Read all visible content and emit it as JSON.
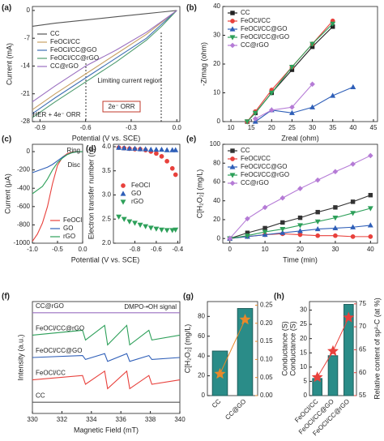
{
  "chart_data": [
    {
      "type": "line",
      "panel_label": "(a)",
      "xlabel": "Potential (V vs. SCE)",
      "ylabel": "Current (mA)",
      "x": [
        -0.95,
        -0.8,
        -0.6,
        -0.4,
        -0.2,
        -0.1,
        0
      ],
      "xlim": [
        -0.95,
        0.02
      ],
      "xticks": [
        -0.9,
        -0.6,
        -0.3,
        {
          "value": 0,
          "label": "0.0"
        }
      ],
      "ylim": [
        -28,
        1
      ],
      "yticks": [
        0,
        -7,
        -14,
        -21,
        -28
      ],
      "legend": "upper left",
      "series": [
        {
          "name": "CC",
          "color": "#555555",
          "values": [
            -4,
            -3.2,
            -2.4,
            -1.6,
            -0.8,
            -0.4,
            0
          ]
        },
        {
          "name": "FeOCl/CC",
          "color": "#c8a165",
          "values": [
            -25,
            -21,
            -16,
            -11,
            -6,
            -3,
            0
          ]
        },
        {
          "name": "FeOCl/CC@GO",
          "color": "#3f6fb5",
          "values": [
            -26,
            -22,
            -17,
            -12,
            -7,
            -3.5,
            0
          ]
        },
        {
          "name": "FeOCl/CC@rGO",
          "color": "#4e9c6e",
          "values": [
            -27,
            -23,
            -18,
            -13,
            -7.5,
            -4,
            0
          ]
        },
        {
          "name": "CC@rGO",
          "color": "#9a6fc0",
          "values": [
            -23,
            -19,
            -14,
            -10,
            -5.5,
            -2.8,
            0
          ]
        }
      ],
      "annotations": [
        "Limiting current region",
        "2e⁻ ORR",
        "HER + 4e⁻ ORR"
      ]
    },
    {
      "type": "line",
      "panel_label": "(b)",
      "xlabel": "Zreal (ohm)",
      "ylabel": "-Zimag (ohm)",
      "markers": true,
      "x": [
        14,
        16,
        20,
        25,
        30,
        35,
        40
      ],
      "xlim": [
        8,
        46
      ],
      "xticks": [
        10,
        15,
        20,
        25,
        30,
        35,
        40,
        45
      ],
      "ylim": [
        0,
        40
      ],
      "yticks": [
        0,
        10,
        20,
        30,
        40
      ],
      "legend": "upper left",
      "series": [
        {
          "name": "CC",
          "color": "#222222",
          "marker": "square",
          "values": [
            0,
            3,
            10,
            18,
            26,
            33,
            null
          ]
        },
        {
          "name": "FeOCl/CC",
          "color": "#e8413c",
          "marker": "circle",
          "values": [
            0,
            3.5,
            11,
            19,
            27,
            35,
            null
          ]
        },
        {
          "name": "FeOCl/CC@GO",
          "color": "#2f5fb8",
          "marker": "triangle",
          "values": [
            null,
            0,
            4,
            3,
            5,
            9,
            12
          ]
        },
        {
          "name": "FeOCl/CC@rGO",
          "color": "#2ea05a",
          "marker": "triangle-down",
          "values": [
            0,
            3,
            10,
            19,
            27,
            34,
            null
          ]
        },
        {
          "name": "CC@rGO",
          "color": "#b57bd6",
          "marker": "diamond",
          "values": [
            null,
            1,
            4,
            5,
            13,
            null,
            null
          ]
        }
      ]
    },
    {
      "type": "line",
      "panel_label": "(c)",
      "xlabel": "Potential (V vs. SCE)",
      "ylabel": "Current (μA)",
      "x": [
        -1.0,
        -0.9,
        -0.8,
        -0.7,
        -0.6,
        -0.5,
        -0.4,
        -0.3,
        -0.2,
        -0.1,
        0
      ],
      "xlim": [
        -1.0,
        0.0
      ],
      "xticks": [
        {
          "value": -1,
          "label": "-1.0"
        },
        -0.5,
        {
          "value": 0,
          "label": "0.0"
        }
      ],
      "ylim": [
        -1000,
        80
      ],
      "yticks": [
        0,
        -200,
        -400,
        -600,
        -800,
        -1000
      ],
      "legend": "lower right",
      "series": [
        {
          "name": "FeOCl",
          "color": "#e8413c",
          "values": [
            -980,
            -900,
            -780,
            -600,
            -350,
            -150,
            -60,
            -20,
            -5,
            0,
            0
          ]
        },
        {
          "name": "GO",
          "color": "#2f5fb8",
          "values": [
            -230,
            -210,
            -190,
            -170,
            -140,
            -100,
            -60,
            -30,
            -10,
            0,
            0
          ]
        },
        {
          "name": "rGO",
          "color": "#2ea05a",
          "values": [
            -460,
            -420,
            -380,
            -300,
            -200,
            -120,
            -70,
            -30,
            -10,
            0,
            0
          ]
        }
      ],
      "annotations": [
        "Ring",
        "Disc"
      ]
    },
    {
      "type": "scatter",
      "panel_label": "(d)",
      "ylabel": "Electron transfer number (n)",
      "x": [
        -0.95,
        -0.9,
        -0.85,
        -0.8,
        -0.75,
        -0.7,
        -0.65,
        -0.6,
        -0.55,
        -0.5,
        -0.45,
        -0.42
      ],
      "xlim": [
        -1.0,
        -0.38
      ],
      "xticks": [
        -0.8,
        -0.6,
        -0.4
      ],
      "ylim": [
        2.0,
        4.05
      ],
      "yticks": [
        {
          "value": 2,
          "label": "2.0"
        },
        2.5,
        {
          "value": 3,
          "label": "3.0"
        },
        3.5,
        {
          "value": 4,
          "label": "4.0"
        }
      ],
      "legend": "center left",
      "series": [
        {
          "name": "FeOCl",
          "color": "#e8413c",
          "marker": "circle",
          "values": [
            3.98,
            3.97,
            3.96,
            3.95,
            3.95,
            3.93,
            3.9,
            3.86,
            3.8,
            3.7,
            3.55,
            3.42
          ]
        },
        {
          "name": "GO",
          "color": "#2f5fb8",
          "marker": "triangle",
          "values": [
            3.98,
            3.97,
            3.96,
            3.96,
            3.95,
            3.95,
            3.94,
            3.94,
            3.94,
            3.93,
            3.93,
            3.93
          ]
        },
        {
          "name": "rGO",
          "color": "#2ea05a",
          "marker": "triangle-down",
          "values": [
            2.55,
            2.5,
            2.45,
            2.42,
            2.38,
            2.35,
            2.32,
            2.3,
            2.28,
            2.27,
            2.27,
            2.28
          ]
        }
      ]
    },
    {
      "type": "line",
      "panel_label": "(e)",
      "xlabel": "Time (min)",
      "ylabel": "C[H₂O₂] (mg/L)",
      "markers": true,
      "x": [
        0,
        5,
        10,
        15,
        20,
        25,
        30,
        35,
        40
      ],
      "xlim": [
        -2,
        42
      ],
      "xticks": [
        0,
        10,
        20,
        30,
        40
      ],
      "ylim": [
        -5,
        100
      ],
      "yticks": [
        0,
        20,
        40,
        60,
        80,
        100
      ],
      "legend": "upper left",
      "series": [
        {
          "name": "CC",
          "color": "#333333",
          "marker": "square",
          "values": [
            0,
            6,
            11,
            17,
            22,
            28,
            33,
            39,
            46
          ]
        },
        {
          "name": "FeOCl/CC",
          "color": "#e8413c",
          "marker": "circle",
          "values": [
            0,
            2,
            4,
            5,
            4,
            3,
            3,
            2,
            2
          ]
        },
        {
          "name": "FeOCl/CC@GO",
          "color": "#2f5fb8",
          "marker": "triangle",
          "values": [
            0,
            2,
            4,
            6,
            8,
            10,
            11,
            12,
            14
          ]
        },
        {
          "name": "FeOCl/CC@rGO",
          "color": "#2ea05a",
          "marker": "triangle-down",
          "values": [
            0,
            3,
            7,
            10,
            14,
            18,
            22,
            27,
            32
          ]
        },
        {
          "name": "CC@rGO",
          "color": "#b57bd6",
          "marker": "diamond",
          "values": [
            0,
            21,
            33,
            43,
            53,
            62,
            71,
            79,
            88
          ]
        }
      ]
    },
    {
      "type": "line",
      "panel_label": "(f)",
      "xlabel": "Magnetic Field (mT)",
      "ylabel": "Intensity (a.u.)",
      "x": [
        330,
        333.4,
        333.6,
        334.9,
        335.1,
        336.4,
        336.6,
        337.9,
        338.1,
        340
      ],
      "xlim": [
        330,
        340
      ],
      "xticks": [
        330,
        332,
        334,
        336,
        338,
        340
      ],
      "legend": "inline",
      "series": [
        {
          "name": "CC@rGO",
          "color": "#9a6fc0",
          "values": [
            0,
            0,
            0,
            0,
            0,
            0,
            0,
            0,
            0,
            0
          ]
        },
        {
          "name": "FeOCl/CC@rGO",
          "color": "#2ea05a",
          "values": [
            0,
            1,
            -1,
            2,
            -2,
            2,
            -2,
            1,
            -1,
            0
          ]
        },
        {
          "name": "FeOCl/CC@GO",
          "color": "#2f5fb8",
          "values": [
            0,
            0.4,
            -0.4,
            0.8,
            -0.8,
            0.8,
            -0.8,
            0.4,
            -0.4,
            0
          ]
        },
        {
          "name": "FeOCl/CC",
          "color": "#e8413c",
          "values": [
            0,
            0.9,
            -0.9,
            1.8,
            -1.8,
            1.8,
            -1.8,
            0.9,
            -0.9,
            0
          ]
        },
        {
          "name": "CC",
          "color": "#555555",
          "values": [
            0,
            0,
            0,
            0,
            0,
            0,
            0,
            0,
            0,
            0
          ]
        }
      ],
      "annotations": [
        "DMPO-•OH signal"
      ]
    },
    {
      "type": "bar",
      "panel_label": "(g)",
      "ylabel": "C[H₂O₂] (mg/L)",
      "y2label": "Conductance (S)",
      "categories": [
        "CC",
        "CC@GO"
      ],
      "ylim": [
        0,
        95
      ],
      "yticks": [
        0,
        20,
        40,
        60,
        80
      ],
      "y2lim": [
        0,
        0.26
      ],
      "y2ticks": [
        {
          "value": 0,
          "label": "0.00"
        },
        0.05,
        {
          "value": 0.1,
          "label": "0.10"
        },
        0.15,
        {
          "value": 0.2,
          "label": "0.20"
        },
        0.25
      ],
      "series": [
        {
          "color": "#2a8c88",
          "values": [
            45,
            88
          ]
        },
        {
          "color": "#e8892b",
          "axis": "y2",
          "marker": "star",
          "values": [
            0.06,
            0.21
          ]
        }
      ]
    },
    {
      "type": "bar",
      "panel_label": "(h)",
      "ylabel": "Conductance (S)",
      "y2label": "Relative content of sp²-C (at %)",
      "categories": [
        "FeOCl/CC",
        "FeOCl/CC@GO",
        "FeOCl/CC@rGO"
      ],
      "ylim": [
        0,
        33
      ],
      "yticks": [
        0,
        5,
        10,
        15,
        20,
        25,
        30
      ],
      "y2lim": [
        55,
        75.5
      ],
      "y2ticks": [
        55,
        60,
        65,
        70,
        75
      ],
      "series": [
        {
          "color": "#2a8c88",
          "values": [
            6,
            14,
            32
          ]
        },
        {
          "color": "#e8413c",
          "axis": "y2",
          "marker": "star",
          "values": [
            59,
            64.7,
            72
          ]
        }
      ]
    }
  ]
}
